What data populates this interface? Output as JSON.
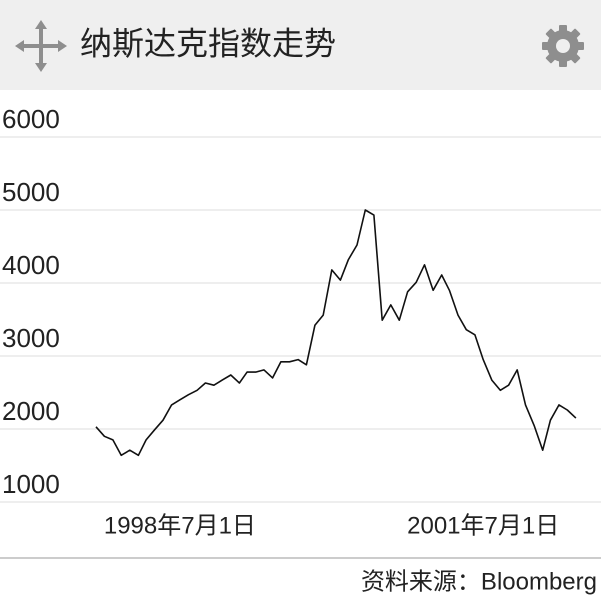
{
  "chart_data": {
    "type": "line",
    "title": "纳斯达克指数走势",
    "source": "资料来源：Bloomberg",
    "x": [
      "1997-09-01",
      "1997-10-01",
      "1997-11-01",
      "1997-12-01",
      "1998-01-01",
      "1998-02-01",
      "1998-03-01",
      "1998-04-01",
      "1998-05-01",
      "1998-06-01",
      "1998-07-01",
      "1998-08-01",
      "1998-09-01",
      "1998-10-01",
      "1998-11-01",
      "1998-12-01",
      "1999-01-01",
      "1999-02-01",
      "1999-03-01",
      "1999-04-01",
      "1999-05-01",
      "1999-06-01",
      "1999-07-01",
      "1999-08-01",
      "1999-09-01",
      "1999-10-01",
      "1999-11-01",
      "1999-12-01",
      "2000-01-01",
      "2000-02-01",
      "2000-03-01",
      "2000-04-01",
      "2000-05-01",
      "2000-06-01",
      "2000-07-01",
      "2000-08-01",
      "2000-09-01",
      "2000-10-01",
      "2000-11-01",
      "2000-12-01",
      "2001-01-01",
      "2001-02-01",
      "2001-03-01",
      "2001-04-01",
      "2001-05-01",
      "2001-06-01",
      "2001-07-01",
      "2001-08-01",
      "2001-09-01",
      "2001-10-01",
      "2001-11-01",
      "2001-12-01",
      "2002-01-01",
      "2002-02-01",
      "2002-03-01",
      "2002-04-01",
      "2002-05-01",
      "2002-06-01"
    ],
    "series": [
      {
        "name": "纳斯达克指数",
        "color": "#111111",
        "values": [
          2030,
          1900,
          1850,
          1640,
          1710,
          1640,
          1850,
          1990,
          2120,
          2330,
          2400,
          2470,
          2530,
          2630,
          2600,
          2670,
          2740,
          2630,
          2780,
          2780,
          2810,
          2700,
          2920,
          2920,
          2950,
          2880,
          3420,
          3560,
          4180,
          4040,
          4320,
          4520,
          5000,
          4930,
          3490,
          3700,
          3490,
          3880,
          4010,
          4250,
          3900,
          4110,
          3900,
          3560,
          3360,
          3290,
          2950,
          2670,
          2530,
          2600,
          2810,
          2330,
          2050,
          1710,
          2120,
          2330,
          2260,
          2150
        ]
      }
    ],
    "xlim": [
      "1997-07-05",
      "2002-07-22"
    ],
    "xticks": [
      {
        "value": "1998-07-01",
        "label": "1998年7月1日"
      },
      {
        "value": "2001-07-01",
        "label": "2001年7月1日"
      }
    ],
    "ylim": [
      1000,
      6000
    ],
    "yticks": [
      1000,
      2000,
      3000,
      4000,
      5000,
      6000
    ],
    "grid": true
  }
}
